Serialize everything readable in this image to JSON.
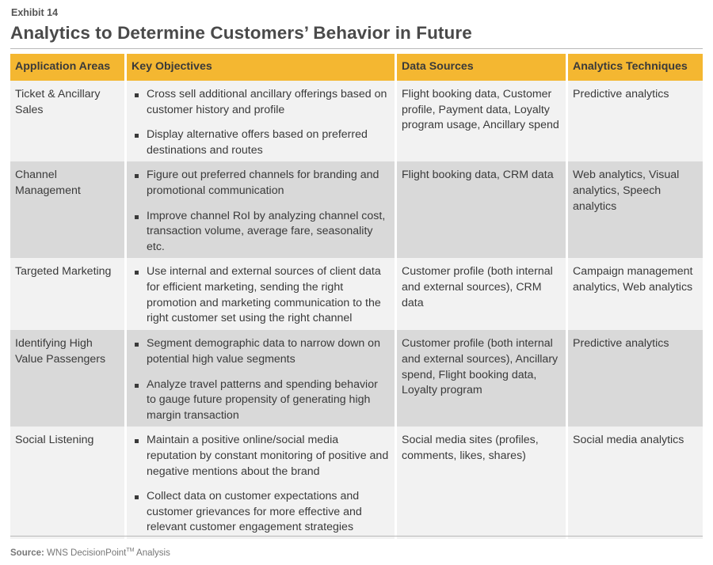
{
  "header": {
    "exhibit_label": "Exhibit 14",
    "title": "Analytics to Determine Customers’ Behavior in Future"
  },
  "table": {
    "headers": [
      "Application Areas",
      "Key Objectives",
      "Data Sources",
      "Analytics Techniques"
    ],
    "rows": [
      {
        "area": "Ticket & Ancillary Sales",
        "objectives": [
          "Cross sell additional ancillary offerings  based on customer history and profile",
          "Display alternative offers based on preferred destinations and routes"
        ],
        "sources": "Flight booking data, Customer profile, Payment data, Loyalty program usage, Ancillary spend",
        "techniques": "Predictive analytics"
      },
      {
        "area": "Channel Management",
        "objectives": [
          "Figure out preferred channels for branding and promotional communication",
          "Improve channel RoI by analyzing channel cost, transaction volume, average fare, seasonality etc."
        ],
        "sources": "Flight booking data, CRM data",
        "techniques": "Web analytics, Visual analytics, Speech analytics"
      },
      {
        "area": "Targeted Marketing",
        "objectives": [
          "Use internal and external sources of client data for efficient marketing, sending the right promotion and marketing communication to the right customer set using the right channel"
        ],
        "sources": "Customer profile (both internal and external sources), CRM data",
        "techniques": "Campaign management analytics, Web analytics"
      },
      {
        "area": "Identifying High Value Passengers",
        "objectives": [
          "Segment demographic data to narrow down on potential high value segments",
          "Analyze travel patterns and spending behavior to gauge future propensity of generating high margin transaction"
        ],
        "sources": "Customer profile (both internal and external sources), Ancillary spend, Flight booking data, Loyalty program",
        "techniques": "Predictive analytics"
      },
      {
        "area": "Social Listening",
        "objectives": [
          "Maintain a positive online/social media reputation by constant monitoring of positive and negative mentions about the brand",
          "Collect data on customer expectations and customer grievances for more effective and relevant customer engagement strategies"
        ],
        "sources": "Social media sites (profiles, comments, likes, shares)",
        "techniques": "Social media analytics"
      }
    ]
  },
  "footer": {
    "source_label": "Source:",
    "source_text": "WNS DecisionPoint",
    "source_mark": "TM",
    "source_suffix": " Analysis"
  },
  "colors": {
    "header_fill": "#f4b731",
    "row_light": "#f2f2f2",
    "row_dark": "#d9d9d9"
  }
}
